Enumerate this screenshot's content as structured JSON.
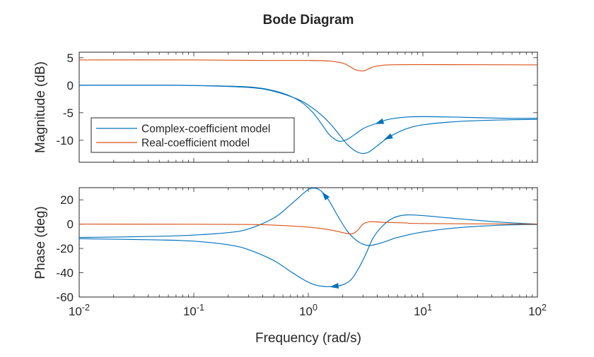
{
  "colors": {
    "complex": "#0072BD",
    "real": "#D95319",
    "axes": "#262626"
  },
  "chart_data": {
    "type": "line",
    "title": "Bode Diagram",
    "xlabel": "Frequency (rad/s)",
    "xscale": "log",
    "xlim": [
      0.01,
      100
    ],
    "xticks": [
      {
        "value": 0.01,
        "base": "10",
        "exp": "-2"
      },
      {
        "value": 0.1,
        "base": "10",
        "exp": "-1"
      },
      {
        "value": 1,
        "base": "10",
        "exp": "0"
      },
      {
        "value": 10,
        "base": "10",
        "exp": "1"
      },
      {
        "value": 100,
        "base": "10",
        "exp": "2"
      }
    ],
    "legend": {
      "location": "lower-left of magnitude panel",
      "entries": [
        "Complex-coefficient model",
        "Real-coefficient model"
      ]
    },
    "magnitude": {
      "ylabel": "Magnitude (dB)",
      "ylim": [
        -14,
        6
      ],
      "yticks": [
        5,
        0,
        -5,
        -10
      ],
      "series": [
        {
          "name": "Complex-coefficient model",
          "color_key": "complex",
          "branch": "negative frequencies",
          "x": [
            0.01,
            0.05,
            0.1,
            0.3,
            0.5,
            0.8,
            1.0,
            1.3,
            1.6,
            1.9,
            2.2,
            2.6,
            3.0,
            3.4,
            4.0,
            5.0,
            7.0,
            10,
            20,
            50,
            100
          ],
          "y": [
            0,
            0,
            -0.05,
            -0.4,
            -1.1,
            -2.5,
            -3.6,
            -5.4,
            -7.3,
            -9.2,
            -10.8,
            -12.0,
            -12.4,
            -12.1,
            -11.0,
            -9.5,
            -8.0,
            -7.2,
            -6.6,
            -6.3,
            -6.2
          ],
          "arrow_at_x": 5.0
        },
        {
          "name": "Complex-coefficient model",
          "color_key": "complex",
          "branch": "positive frequencies",
          "x": [
            0.01,
            0.05,
            0.1,
            0.3,
            0.5,
            0.7,
            0.9,
            1.1,
            1.3,
            1.5,
            1.7,
            1.9,
            2.2,
            2.6,
            3.0,
            3.5,
            4.0,
            5.0,
            7.0,
            10,
            20,
            50,
            100
          ],
          "y": [
            0,
            0,
            -0.05,
            -0.3,
            -1.0,
            -2.0,
            -3.3,
            -5.0,
            -7.0,
            -8.8,
            -9.8,
            -10.2,
            -9.8,
            -8.8,
            -7.9,
            -7.3,
            -6.9,
            -6.2,
            -5.8,
            -5.7,
            -5.8,
            -6.0,
            -6.0
          ],
          "arrow_at_x": 4.2
        },
        {
          "name": "Real-coefficient model",
          "color_key": "real",
          "x": [
            0.01,
            0.1,
            0.5,
            1.0,
            1.5,
            2.0,
            2.3,
            2.6,
            3.0,
            3.3,
            3.8,
            5.0,
            10,
            100
          ],
          "y": [
            4.6,
            4.6,
            4.5,
            4.5,
            4.4,
            4.0,
            3.4,
            2.8,
            2.6,
            2.9,
            3.4,
            3.7,
            3.75,
            3.7
          ]
        }
      ]
    },
    "phase": {
      "ylabel": "Phase (deg)",
      "ylim": [
        -60,
        30
      ],
      "yticks": [
        20,
        0,
        -20,
        -40,
        -60
      ],
      "series": [
        {
          "name": "Complex-coefficient model",
          "color_key": "complex",
          "branch": "lower loop",
          "x": [
            0.01,
            0.05,
            0.1,
            0.2,
            0.3,
            0.5,
            0.7,
            0.9,
            1.1,
            1.3,
            1.5,
            1.8,
            2.1,
            2.4,
            2.8,
            3.2,
            3.7,
            4.5,
            5.5,
            7.0,
            10,
            20,
            50,
            100
          ],
          "y": [
            -12,
            -13,
            -14,
            -17,
            -21,
            -30,
            -39,
            -45.5,
            -49.5,
            -51,
            -51.5,
            -51,
            -49,
            -45,
            -35,
            -24,
            -11,
            -1,
            5,
            7.5,
            7,
            4.5,
            1.5,
            0
          ],
          "arrow_at_x": 1.7
        },
        {
          "name": "Complex-coefficient model",
          "color_key": "complex",
          "branch": "upper loop",
          "x": [
            0.01,
            0.05,
            0.1,
            0.2,
            0.3,
            0.5,
            0.7,
            0.85,
            1.0,
            1.15,
            1.3,
            1.5,
            1.8,
            2.2,
            2.6,
            3.0,
            3.5,
            4.5,
            6.0,
            10,
            20,
            50,
            100
          ],
          "y": [
            -11,
            -10,
            -9,
            -7,
            -4,
            5,
            16,
            23,
            28.5,
            29.5,
            27,
            20,
            7,
            -6,
            -13,
            -16.5,
            -17.5,
            -15,
            -11,
            -6.5,
            -3,
            -0.8,
            -0.3
          ],
          "arrow_at_x": 1.4
        },
        {
          "name": "Real-coefficient model",
          "color_key": "real",
          "x": [
            0.01,
            0.1,
            0.3,
            0.5,
            1.0,
            1.5,
            2.0,
            2.4,
            2.7,
            3.0,
            3.5,
            4.5,
            7.0,
            10,
            100
          ],
          "y": [
            0,
            -0.1,
            -0.3,
            -0.8,
            -2.5,
            -4.5,
            -7,
            -8,
            -5,
            0,
            2,
            1.5,
            1,
            0.5,
            0
          ]
        }
      ]
    }
  }
}
